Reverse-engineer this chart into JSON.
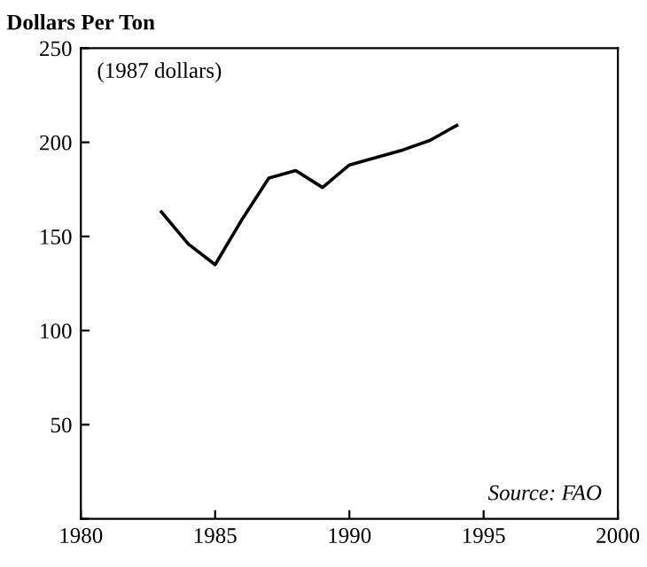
{
  "chart_data": {
    "type": "line",
    "ylabel": "Dollars Per Ton",
    "annotations": [
      "(1987 dollars)",
      "Source: FAO"
    ],
    "x": [
      1983,
      1984,
      1985,
      1986,
      1987,
      1988,
      1989,
      1990,
      1991,
      1992,
      1993,
      1994
    ],
    "series": [
      {
        "color": "#000000",
        "values": [
          163,
          146,
          135,
          159,
          181,
          185,
          176,
          188,
          192,
          196,
          201,
          209
        ]
      }
    ],
    "xlim": [
      1980,
      2000
    ],
    "xticks": [
      1980,
      1985,
      1990,
      1995,
      2000
    ],
    "ylim": [
      0,
      250
    ],
    "yticks": [
      {
        "value": 0,
        "label": null
      },
      50,
      100,
      150,
      200,
      250
    ],
    "grid": false,
    "legend": false,
    "marker": "none",
    "line_style": "solid"
  }
}
